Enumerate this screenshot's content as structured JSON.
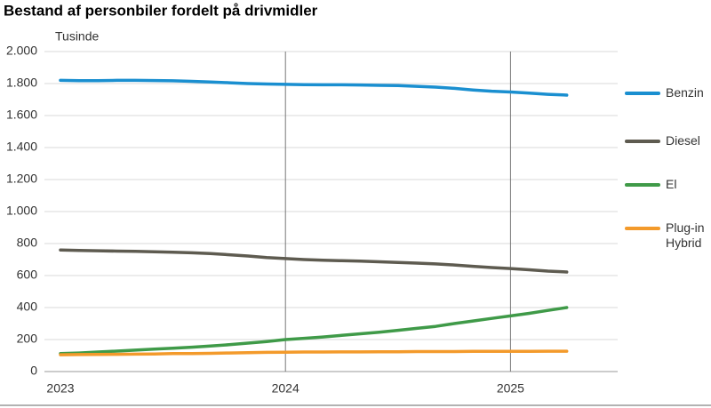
{
  "chart_data": {
    "type": "line",
    "title": "Bestand af personbiler fordelt på drivmidler",
    "y_unit": "Tusinde",
    "categories": [
      "2023",
      null,
      null,
      null,
      null,
      null,
      null,
      null,
      null,
      null,
      null,
      null,
      "2024",
      null,
      null,
      null,
      null,
      null,
      null,
      null,
      null,
      null,
      null,
      null,
      "2025",
      null,
      null,
      null
    ],
    "series": [
      {
        "name": "Benzin",
        "color": "#1a8fd0",
        "values": [
          1820,
          1818,
          1818,
          1820,
          1820,
          1819,
          1817,
          1814,
          1810,
          1805,
          1800,
          1797,
          1795,
          1793,
          1792,
          1792,
          1791,
          1789,
          1787,
          1783,
          1778,
          1770,
          1760,
          1752,
          1747,
          1740,
          1733,
          1728
        ]
      },
      {
        "name": "Diesel",
        "color": "#5e5b50",
        "values": [
          760,
          757,
          755,
          753,
          751,
          749,
          746,
          742,
          737,
          730,
          722,
          713,
          706,
          700,
          696,
          693,
          690,
          686,
          682,
          678,
          673,
          666,
          658,
          650,
          644,
          636,
          628,
          622
        ]
      },
      {
        "name": "El",
        "color": "#3f9a48",
        "values": [
          112,
          116,
          122,
          128,
          134,
          140,
          146,
          152,
          160,
          168,
          178,
          188,
          200,
          208,
          216,
          226,
          236,
          246,
          258,
          270,
          282,
          300,
          316,
          332,
          348,
          364,
          382,
          400
        ]
      },
      {
        "name": "Plug-in Hybrid",
        "color": "#f39a2b",
        "values": [
          105,
          106,
          107,
          108,
          109,
          110,
          112,
          113,
          114,
          116,
          118,
          120,
          121,
          122,
          122,
          123,
          123,
          124,
          124,
          125,
          125,
          125,
          126,
          126,
          126,
          126,
          127,
          127
        ]
      }
    ],
    "ylim": [
      0,
      2000
    ],
    "yticks": [
      0,
      200,
      400,
      600,
      800,
      {
        "value": 1000,
        "label": "1.000"
      },
      {
        "value": 1200,
        "label": "1.200"
      },
      {
        "value": 1400,
        "label": "1.400"
      },
      {
        "value": 1600,
        "label": "1.600"
      },
      {
        "value": 1800,
        "label": "1.800"
      },
      {
        "value": 2000,
        "label": "2.000"
      }
    ],
    "grid": true
  }
}
